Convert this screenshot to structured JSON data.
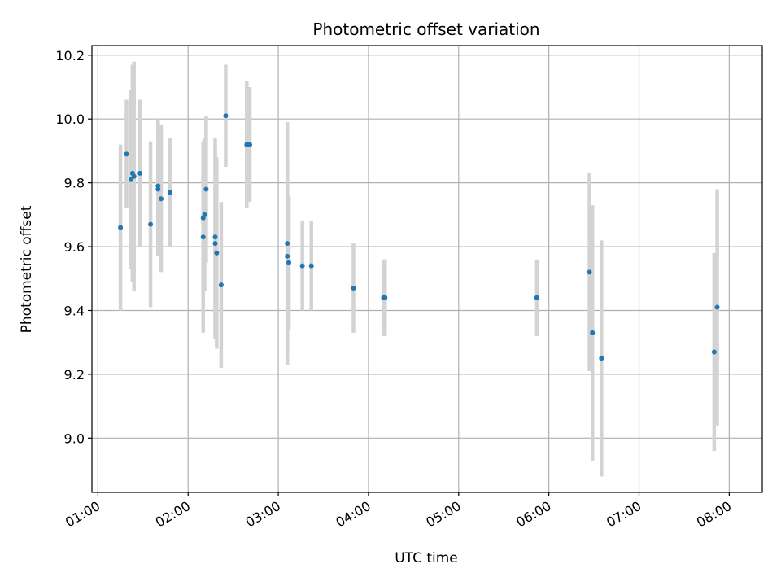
{
  "chart_data": {
    "type": "scatter",
    "title": "Photometric offset variation",
    "xlabel": "UTC time",
    "ylabel": "Photometric offset",
    "x_ticks": [
      "01:00",
      "02:00",
      "03:00",
      "04:00",
      "05:00",
      "06:00",
      "07:00",
      "08:00"
    ],
    "y_ticks": [
      "9.0",
      "9.2",
      "9.4",
      "9.6",
      "9.8",
      "10.0",
      "10.2"
    ],
    "xlim": [
      "00:56",
      "08:22"
    ],
    "ylim": [
      8.83,
      10.23
    ],
    "grid": true,
    "legend": false,
    "colors": {
      "points": "#1f77b4",
      "errorbars": "#d3d3d3",
      "grid": "#b0b0b0"
    },
    "points": [
      {
        "x": "01:15",
        "y": 9.66,
        "err": 0.26
      },
      {
        "x": "01:19",
        "y": 9.89,
        "err": 0.17
      },
      {
        "x": "01:22",
        "y": 9.81,
        "err": 0.28
      },
      {
        "x": "01:23",
        "y": 9.83,
        "err": 0.34
      },
      {
        "x": "01:24",
        "y": 9.82,
        "err": 0.36
      },
      {
        "x": "01:28",
        "y": 9.83,
        "err": 0.23
      },
      {
        "x": "01:35",
        "y": 9.67,
        "err": 0.26
      },
      {
        "x": "01:40",
        "y": 9.79,
        "err": 0.21
      },
      {
        "x": "01:40",
        "y": 9.78,
        "err": 0.21
      },
      {
        "x": "01:42",
        "y": 9.75,
        "err": 0.23
      },
      {
        "x": "01:48",
        "y": 9.77,
        "err": 0.17
      },
      {
        "x": "02:10",
        "y": 9.63,
        "err": 0.3
      },
      {
        "x": "02:10",
        "y": 9.69,
        "err": 0.24
      },
      {
        "x": "02:11",
        "y": 9.7,
        "err": 0.24
      },
      {
        "x": "02:12",
        "y": 9.78,
        "err": 0.23
      },
      {
        "x": "02:18",
        "y": 9.61,
        "err": 0.3
      },
      {
        "x": "02:18",
        "y": 9.63,
        "err": 0.31
      },
      {
        "x": "02:19",
        "y": 9.58,
        "err": 0.3
      },
      {
        "x": "02:22",
        "y": 9.48,
        "err": 0.26
      },
      {
        "x": "02:25",
        "y": 10.01,
        "err": 0.16
      },
      {
        "x": "02:39",
        "y": 9.92,
        "err": 0.2
      },
      {
        "x": "02:41",
        "y": 9.92,
        "err": 0.18
      },
      {
        "x": "03:06",
        "y": 9.61,
        "err": 0.38
      },
      {
        "x": "03:06",
        "y": 9.57,
        "err": 0.3
      },
      {
        "x": "03:07",
        "y": 9.55,
        "err": 0.21
      },
      {
        "x": "03:16",
        "y": 9.54,
        "err": 0.14
      },
      {
        "x": "03:22",
        "y": 9.54,
        "err": 0.14
      },
      {
        "x": "03:50",
        "y": 9.47,
        "err": 0.14
      },
      {
        "x": "04:10",
        "y": 9.44,
        "err": 0.12
      },
      {
        "x": "04:11",
        "y": 9.44,
        "err": 0.12
      },
      {
        "x": "05:52",
        "y": 9.44,
        "err": 0.12
      },
      {
        "x": "06:27",
        "y": 9.52,
        "err": 0.31
      },
      {
        "x": "06:29",
        "y": 9.33,
        "err": 0.4
      },
      {
        "x": "06:35",
        "y": 9.25,
        "err": 0.37
      },
      {
        "x": "07:50",
        "y": 9.27,
        "err": 0.31
      },
      {
        "x": "07:52",
        "y": 9.41,
        "err": 0.37
      }
    ]
  }
}
